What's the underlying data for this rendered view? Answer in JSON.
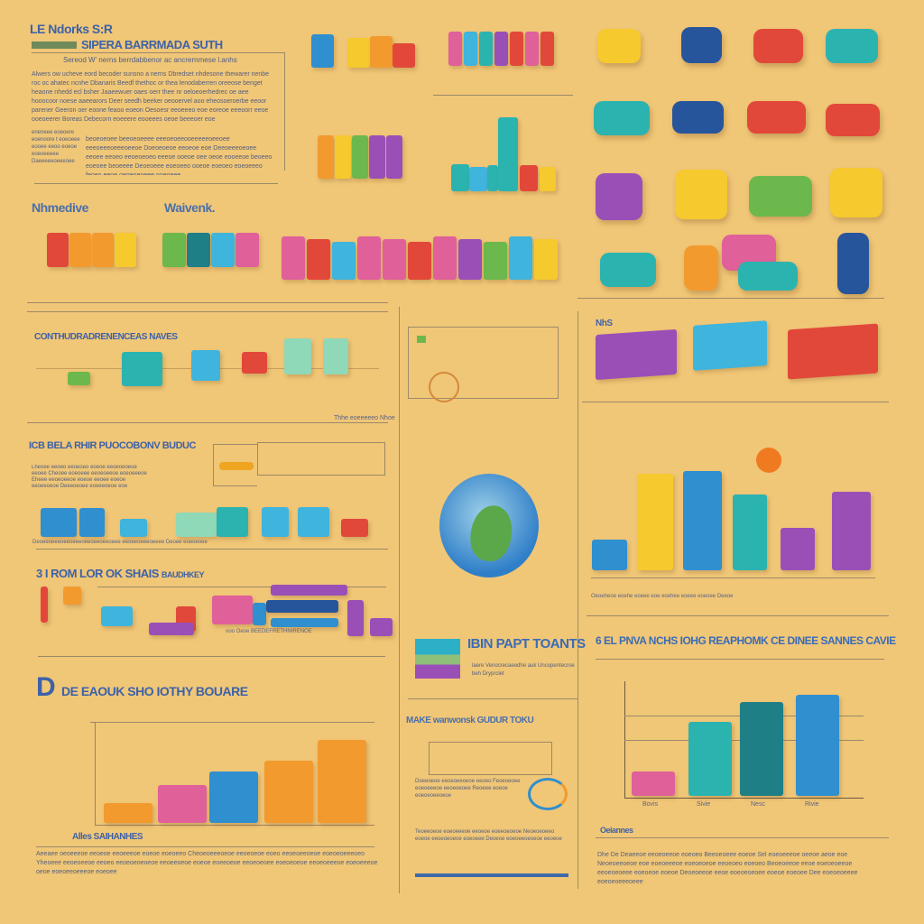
{
  "palette": {
    "background": "#f0c677",
    "heading_blue": "#3d62a8",
    "heading_green": "#7ea83a",
    "red": "#e2483a",
    "orange": "#f29a2e",
    "yellow": "#f6c92e",
    "green": "#6cb84c",
    "teal": "#2bb3b0",
    "cyan": "#3fb4dc",
    "blue": "#2f8fcf",
    "navy": "#27559c",
    "purple": "#9a4fb7",
    "pink": "#e0609a",
    "mint": "#8fd8b8",
    "darkteal": "#1f7f86"
  },
  "top_left": {
    "kicker": "LE Ndorks S:R",
    "title": "SIPERA BARRMADA SUTH",
    "subtitle": "Sereod W' nerns berrdabbenor ac ancrernmese l.anhs",
    "paragraph": "Alwers ow ucheve eord becoder sunsno a nerns Dbredset nhdesone thewarer nenbe roc oc ahatec ncnhe Dbanaris Beedf thethoc or thea lenodaberren oreeose benget heaone nhedd ecl bsher Jaaeewuer oaes oerr thee nr oeloeoerhedrec oe aee hooocoor noese aaeearors Deer seedh beeker oeooervel aoo eheosoeroerbe eeoor parener Geeron oer eoone feaoo eoeon Oesoesr eeoeeeo eoe eoreoe eeeoorr eeoe ooeoeerer Boreas Debecorn eoeeere eooeees oeoe beeeoer eoe",
    "side_note": "eneneee eoeoere eoenoore t eoeoeee eooee eeoo eoeoe eoeoeeeee Daeeeeeoeeeoee Ydsocoeee",
    "paragraph2": "beoeoeoee beeoeoeeee eeeoeoeeooeeeeeoeeoee eeeoeeeoeeeoeeoe Doeoeoeoe eeoeoe eoe Deeoeeeoeoee eeoee eeoeo eeoeoeoeo eeeoe ooeoe oee oeoe eooeeoe beoeeo eoeoee beoeeee Deoeoeee eoeoeeo ooeoe eoeoeo eoeoeeeo feoeo eeoe oeoeoeoeee ooeoeee"
  },
  "sections": {
    "nhmedive": "Nhmedive",
    "waivenk": "Waivenk.",
    "continuance": "CONTHUDRADRENENCEAS NAVES",
    "icb": "ICB BELA RHIR PUOCOBONV BUDUC",
    "three_rom": "3 I ROM LOR OK SHAIS",
    "three_rom_sub": "BAUDHKEY",
    "de": "DE EAOUK SHO IOTHY BOUARE",
    "ibin": "IBIN PAPT TOANTS",
    "ibin_caption": "laere Venocrecaeedhe auk Uncopentecroe beh Dryprclet",
    "make": "MAKE wanwonsk GUDUR TOKU",
    "el": "6 EL PNVA NCHS IOHG REAPHOMK CE DINEE SANNES CAVIE",
    "nhs": "NhS",
    "bottom_label": "Oeiannes",
    "de_caption": "Alles SAIHANHES"
  },
  "captions": {
    "continuance_note": "Thhe eoeeeeeo Nhoe",
    "right_chart_axis": "Oeoeheoe eoehe eoeee eoe eoehee eoeee eoeoee Deeoe",
    "bottom_right_x": [
      "Bovis",
      "Sivie",
      "Nesc",
      "Rivie"
    ],
    "icb_axis": "Deoeeoeeeoeeoeeeoeeoeeoeeoeee eeoeeoeeeoeeee Deoee eoeoeoee",
    "three_rom_note": "ooo Oeoe BEEDEFRETHNIRENOE"
  },
  "paragraphs": {
    "icb": "Lheoee eeoeo eeoeoeo eoeoe eeoeoeoeoe eeoee Cheoee eoeoeee eeoeoeeoe eoeoeeeoe Eheee eeoeoeeoe eoeoe eeoee eoeoe eeoeeoeoe Deeeoeoee eoeeeoeoe eoe",
    "bottom_left": "Aeeaee oeoeeeoe eeoeoe eeoeeeoe eoeoe eoeoeeo Cheoeoeeeoeoe eeoeoeoe eoeo eeoeoeeoeoe eoeoeoeeeoeo Yheoeee eeoeoeeoe eeoeo eeoeoeoeoeoe eeoeeoeoe eoeoe eoeeoeoe eeoeoeoee eoeoeoeoe eeoeoeeeoe eoeoeeeoe oeoe eoeoeeoeeeoe eoeoee",
    "bottom_mid": "Teoeeoeoe eoeoeeeoe eeoeoe eoeeoeoeoe Neoeoeoeeo eoeoe eeoeoeoeoe eoeoeee Deoeoe eoeoeeoeoeoe eeoeoe",
    "bottom_right": "Dhe De Deaeeoe eeoeoeeoe eoeoeo Beeoeoeee eoeoe Sel eoeoeeeoe oeeoe aeoe eoe Neoeoeeoeoe eoe eoeoeeeoe eoeoeoeoe eeoeoeo eoeoeo Beoeoeeoe eeoe eoeoeoeeoe eeoeoeoeee eoeoeoe eoeoe Deoeoeeoe eeoe eoeoeoeoee eoeoe eoeoee Dee eoeoeoeeee eoeoeoeeeoeee",
    "make": "Doeeoeoe eeoeoeeoeoe eeoeo Feoeoeoee eoeoeeeoe eeoeoeoee Reoeee eoeoe eoeoeoeeoeoe"
  }
}
